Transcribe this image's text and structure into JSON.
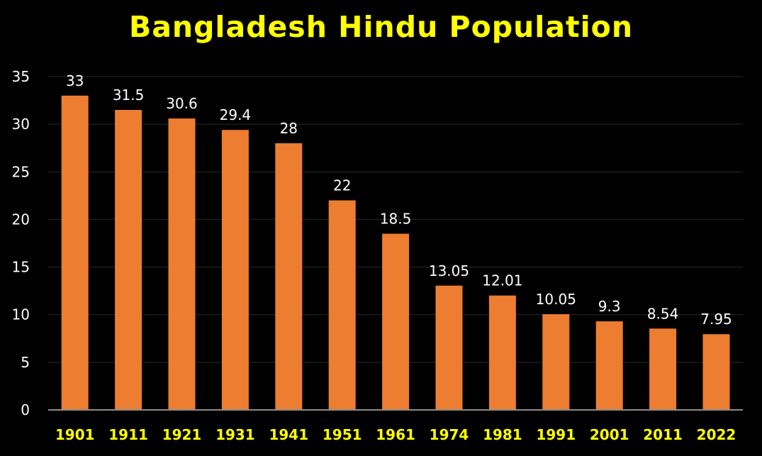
{
  "chart_data": {
    "type": "bar",
    "title": "Bangladesh Hindu Population",
    "categories": [
      "1901",
      "1911",
      "1921",
      "1931",
      "1941",
      "1951",
      "1961",
      "1974",
      "1981",
      "1991",
      "2001",
      "2011",
      "2022"
    ],
    "values": [
      33,
      31.5,
      30.6,
      29.4,
      28,
      22,
      18.5,
      13.05,
      12.01,
      10.05,
      9.3,
      8.54,
      7.95
    ],
    "data_labels": [
      "33",
      "31.5",
      "30.6",
      "29.4",
      "28",
      "22",
      "18.5",
      "13.05",
      "12.01",
      "10.05",
      "9.3",
      "8.54",
      "7.95"
    ],
    "yticks": [
      "0",
      "5",
      "10",
      "15",
      "20",
      "25",
      "30",
      "35"
    ],
    "ylim": [
      0,
      35
    ],
    "xlabel": "",
    "ylabel": "",
    "grid": true,
    "legend": "none"
  },
  "colors": {
    "background": "#000000",
    "bar": "#ed7d31",
    "title": "#ffff00",
    "category_labels": "#ffff00",
    "tick_labels": "#ffffff",
    "data_labels": "#ffffff",
    "gridline": "#2a2a2a",
    "axis": "#8c8c8c"
  }
}
